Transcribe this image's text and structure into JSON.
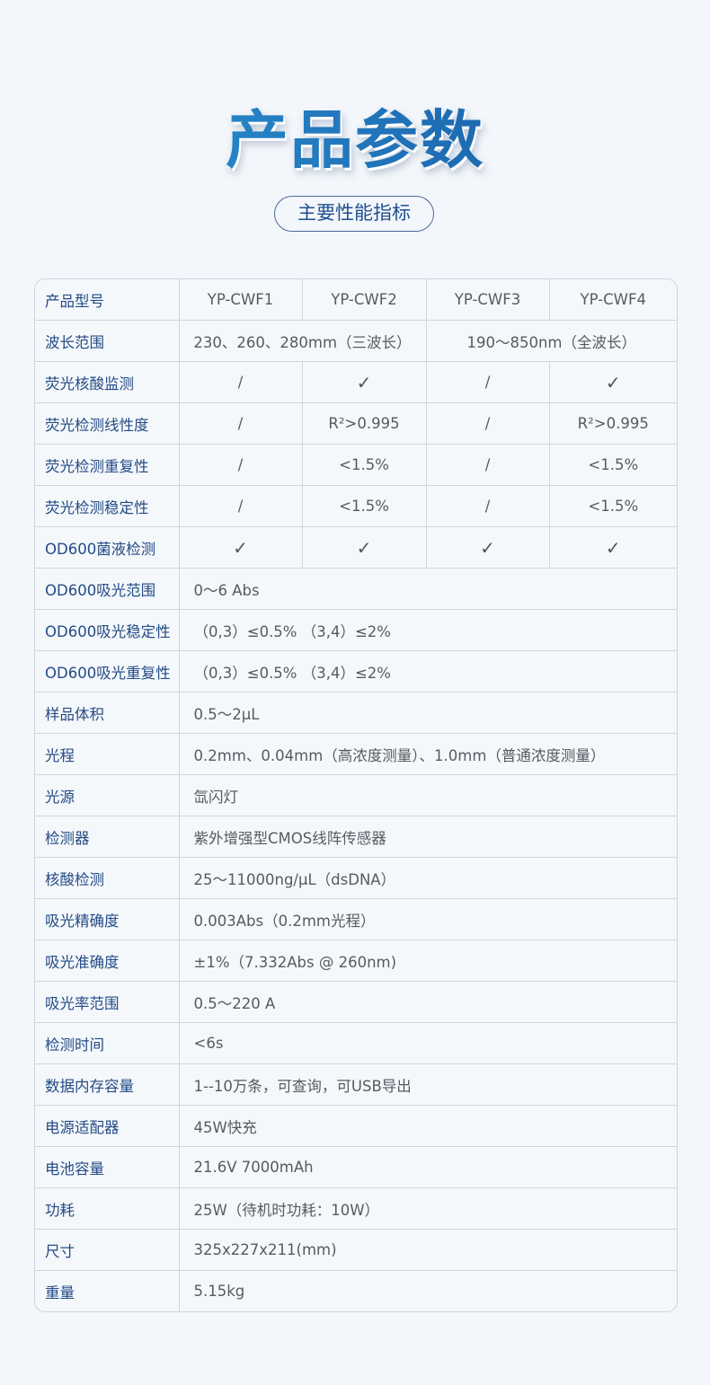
{
  "header": {
    "title": "产品参数",
    "subtitle": "主要性能指标"
  },
  "table": {
    "models_label": "产品型号",
    "models": [
      "YP-CWF1",
      "YP-CWF2",
      "YP-CWF3",
      "YP-CWF4"
    ],
    "wavelength": {
      "label": "波长范围",
      "group1": "230、260、280mm（三波长）",
      "group2": "190～850nm（全波长）"
    },
    "model_rows": [
      {
        "label": "荧光核酸监测",
        "values": [
          "/",
          "✓",
          "/",
          "✓"
        ]
      },
      {
        "label": "荧光检测线性度",
        "values": [
          "/",
          "R²>0.995",
          "/",
          "R²>0.995"
        ]
      },
      {
        "label": "荧光检测重复性",
        "values": [
          "/",
          "<1.5%",
          "/",
          "<1.5%"
        ]
      },
      {
        "label": "荧光检测稳定性",
        "values": [
          "/",
          "<1.5%",
          "/",
          "<1.5%"
        ]
      },
      {
        "label": "OD600菌液检测",
        "values": [
          "✓",
          "✓",
          "✓",
          "✓"
        ]
      }
    ],
    "common_rows": [
      {
        "label": "OD600吸光范围",
        "value": "0～6 Abs"
      },
      {
        "label": "OD600吸光稳定性",
        "value": "（0,3）≤0.5% （3,4）≤2%"
      },
      {
        "label": "OD600吸光重复性",
        "value": "（0,3）≤0.5% （3,4）≤2%"
      },
      {
        "label": "样品体积",
        "value": "0.5～2μL"
      },
      {
        "label": "光程",
        "value": "0.2mm、0.04mm（高浓度测量）、1.0mm（普通浓度测量）"
      },
      {
        "label": "光源",
        "value": "氙闪灯"
      },
      {
        "label": "检测器",
        "value": "紫外增强型CMOS线阵传感器"
      },
      {
        "label": "核酸检测",
        "value": "25～11000ng/μL（dsDNA）"
      },
      {
        "label": "吸光精确度",
        "value": "0.003Abs（0.2mm光程）"
      },
      {
        "label": "吸光准确度",
        "value": "±1%（7.332Abs @ 260nm)"
      },
      {
        "label": "吸光率范围",
        "value": "0.5～220 A"
      },
      {
        "label": "检测时间",
        "value": "<6s"
      },
      {
        "label": "数据内存容量",
        "value": "1--10万条，可查询，可USB导出"
      },
      {
        "label": "电源适配器",
        "value": "45W快充"
      },
      {
        "label": "电池容量",
        "value": "21.6V 7000mAh"
      },
      {
        "label": "功耗",
        "value": "25W（待机时功耗：10W）"
      },
      {
        "label": "尺寸",
        "value": "325x227x211(mm)"
      },
      {
        "label": "重量",
        "value": "5.15kg"
      }
    ]
  }
}
